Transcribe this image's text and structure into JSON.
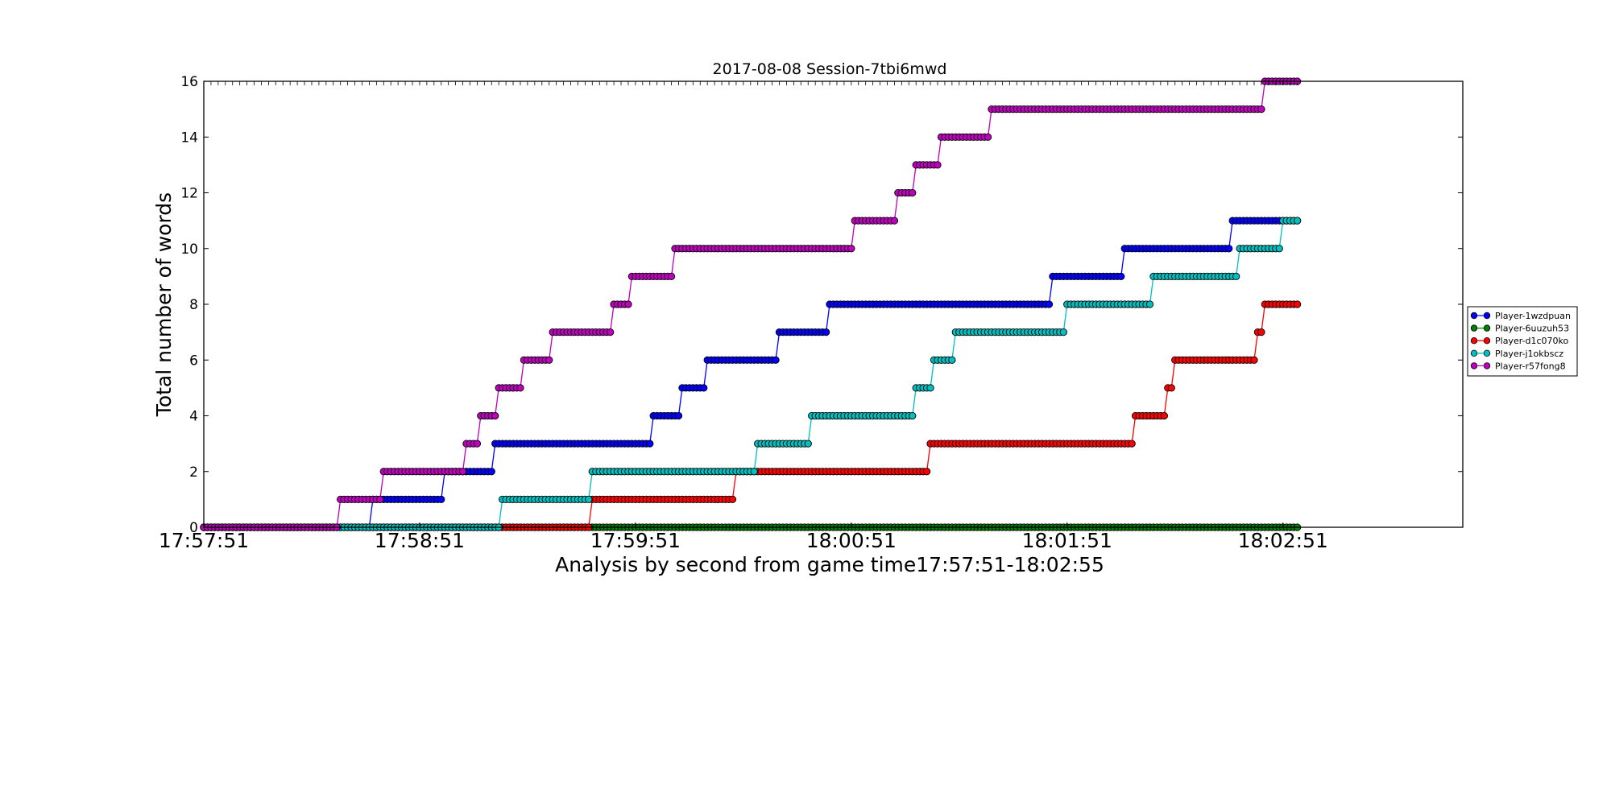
{
  "chart_data": {
    "type": "line",
    "title": "2017-08-08 Session-7tbi6mwd",
    "xlabel": "Analysis by second from game time17:57:51-18:02:55",
    "ylabel": "Total number of words",
    "xlim": [
      0,
      350
    ],
    "ylim": [
      0,
      16
    ],
    "x_tick_values": [
      0,
      60,
      120,
      180,
      240,
      300
    ],
    "x_tick_labels": [
      "17:57:51",
      "17:58:51",
      "17:59:51",
      "18:00:51",
      "18:01:51",
      "18:02:51"
    ],
    "y_ticks": [
      0,
      2,
      4,
      6,
      8,
      10,
      12,
      14,
      16
    ],
    "x_end": 304,
    "grid": false,
    "legend_position": "right",
    "series": [
      {
        "name": "Player-1wzdpuan",
        "color": "#0000ff",
        "steps": [
          [
            0,
            0
          ],
          [
            47,
            1
          ],
          [
            67,
            2
          ],
          [
            81,
            3
          ],
          [
            125,
            4
          ],
          [
            133,
            5
          ],
          [
            140,
            6
          ],
          [
            160,
            7
          ],
          [
            174,
            8
          ],
          [
            236,
            9
          ],
          [
            256,
            10
          ],
          [
            286,
            11
          ]
        ]
      },
      {
        "name": "Player-6uuzuh53",
        "color": "#008000",
        "steps": [
          [
            0,
            0
          ]
        ]
      },
      {
        "name": "Player-d1c070ko",
        "color": "#ff0000",
        "steps": [
          [
            0,
            0
          ],
          [
            108,
            1
          ],
          [
            148,
            2
          ],
          [
            202,
            3
          ],
          [
            259,
            4
          ],
          [
            268,
            5
          ],
          [
            270,
            6
          ],
          [
            293,
            7
          ],
          [
            295,
            8
          ]
        ]
      },
      {
        "name": "Player-j1okbscz",
        "color": "#00bfbf",
        "steps": [
          [
            0,
            0
          ],
          [
            83,
            1
          ],
          [
            108,
            2
          ],
          [
            154,
            3
          ],
          [
            169,
            4
          ],
          [
            198,
            5
          ],
          [
            203,
            6
          ],
          [
            209,
            7
          ],
          [
            240,
            8
          ],
          [
            264,
            9
          ],
          [
            288,
            10
          ],
          [
            300,
            11
          ]
        ]
      },
      {
        "name": "Player-r57fong8",
        "color": "#bf00bf",
        "steps": [
          [
            0,
            0
          ],
          [
            38,
            1
          ],
          [
            50,
            2
          ],
          [
            73,
            3
          ],
          [
            77,
            4
          ],
          [
            82,
            5
          ],
          [
            89,
            6
          ],
          [
            97,
            7
          ],
          [
            114,
            8
          ],
          [
            119,
            9
          ],
          [
            131,
            10
          ],
          [
            181,
            11
          ],
          [
            193,
            12
          ],
          [
            198,
            13
          ],
          [
            205,
            14
          ],
          [
            219,
            15
          ],
          [
            295,
            16
          ]
        ]
      }
    ]
  }
}
